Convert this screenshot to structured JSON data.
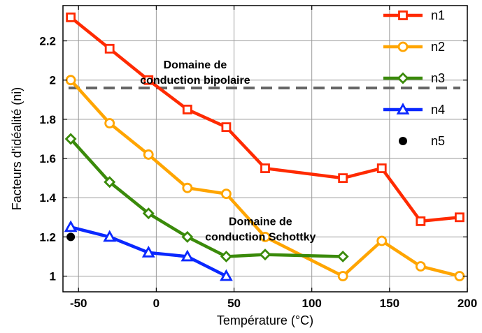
{
  "chart_data": {
    "type": "line",
    "xlabel": "Température (°C)",
    "ylabel": "Facteurs d'idéalité (ni)",
    "xlim": [
      -60,
      200
    ],
    "ylim": [
      0.92,
      2.38
    ],
    "xticks": [
      -50,
      0,
      50,
      100,
      150,
      200
    ],
    "xtick_labels": [
      "-50",
      "0",
      "50",
      "100",
      "150",
      "200"
    ],
    "yticks": [
      1,
      1.2,
      1.4,
      1.6,
      1.8,
      2,
      2.2
    ],
    "ytick_labels": [
      "1",
      "1.2",
      "1.4",
      "1.6",
      "1.8",
      "2",
      "2.2"
    ],
    "grid": true,
    "legend_position": "right",
    "series": [
      {
        "name": "n1",
        "color": "#ff2a00",
        "marker": "square",
        "x": [
          -55,
          -30,
          -5,
          20,
          45,
          70,
          120,
          145,
          170,
          195
        ],
        "y": [
          2.32,
          2.16,
          2.0,
          1.85,
          1.76,
          1.55,
          1.5,
          1.55,
          1.28,
          1.3
        ]
      },
      {
        "name": "n2",
        "color": "#ffa500",
        "marker": "circle",
        "x": [
          -55,
          -30,
          -5,
          20,
          45,
          70,
          120,
          145,
          170,
          195
        ],
        "y": [
          2.0,
          1.78,
          1.62,
          1.45,
          1.42,
          1.2,
          1.0,
          1.18,
          1.05,
          1.0
        ]
      },
      {
        "name": "n3",
        "color": "#3a8a0a",
        "marker": "diamond",
        "x": [
          -55,
          -30,
          -5,
          20,
          45,
          70,
          120
        ],
        "y": [
          1.7,
          1.48,
          1.32,
          1.2,
          1.1,
          1.11,
          1.1
        ]
      },
      {
        "name": "n4",
        "color": "#0a28ff",
        "marker": "triangle",
        "x": [
          -55,
          -30,
          -5,
          20,
          45
        ],
        "y": [
          1.25,
          1.2,
          1.12,
          1.1,
          1.0
        ]
      },
      {
        "name": "n5",
        "color": "#000000",
        "marker": "dot",
        "x": [
          -55
        ],
        "y": [
          1.2
        ]
      }
    ],
    "reference_line": {
      "y": 1.96,
      "style": "dashed",
      "color": "#666666"
    },
    "annotations": [
      {
        "lines": [
          "Domaine de",
          "conduction bipolaire"
        ],
        "x": 25,
        "y": 2.06
      },
      {
        "lines": [
          "Domaine de",
          "conduction Schottky"
        ],
        "x": 67,
        "y": 1.26
      }
    ]
  }
}
